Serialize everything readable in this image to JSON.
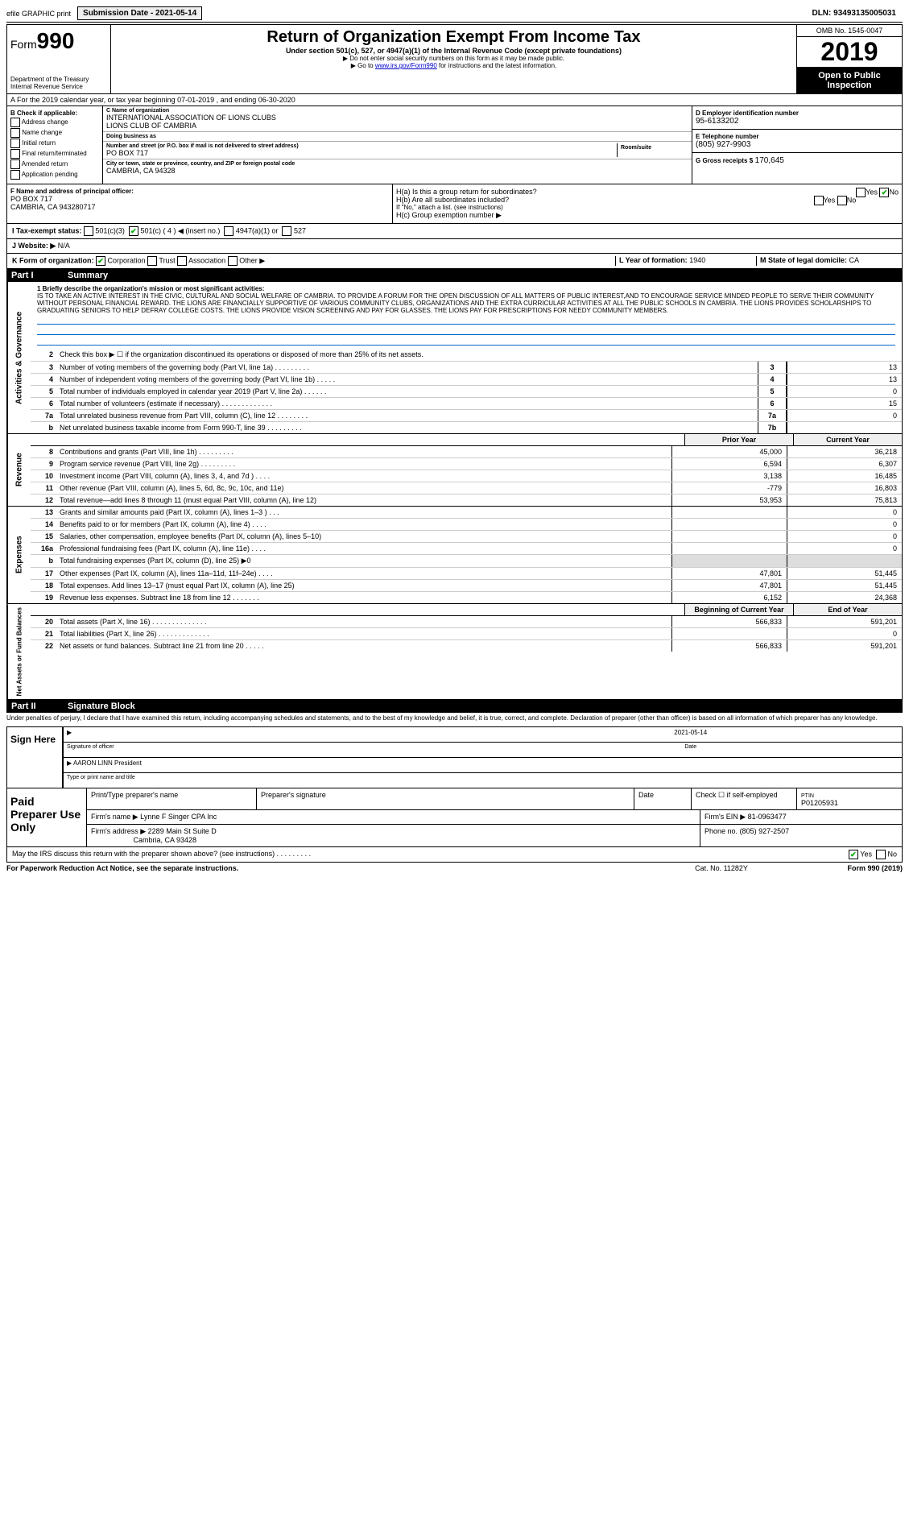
{
  "topbar": {
    "efile": "efile GRAPHIC print",
    "submission_label": "Submission Date - 2021-05-14",
    "dln": "DLN: 93493135005031"
  },
  "header": {
    "form_prefix": "Form",
    "form_num": "990",
    "dept": "Department of the Treasury\nInternal Revenue Service",
    "title": "Return of Organization Exempt From Income Tax",
    "sub": "Under section 501(c), 527, or 4947(a)(1) of the Internal Revenue Code (except private foundations)",
    "note1": "▶ Do not enter social security numbers on this form as it may be made public.",
    "note2": "▶ Go to www.irs.gov/Form990 for instructions and the latest information.",
    "omb": "OMB No. 1545-0047",
    "year": "2019",
    "open": "Open to Public Inspection"
  },
  "period": "A For the 2019 calendar year, or tax year beginning 07-01-2019  , and ending 06-30-2020",
  "box_b": {
    "label": "B Check if applicable:",
    "opts": [
      "Address change",
      "Name change",
      "Initial return",
      "Final return/terminated",
      "Amended return",
      "Application pending"
    ]
  },
  "box_c": {
    "name_lbl": "C Name of organization",
    "name1": "INTERNATIONAL ASSOCIATION OF LIONS CLUBS",
    "name2": "LIONS CLUB OF CAMBRIA",
    "dba_lbl": "Doing business as",
    "dba": "",
    "addr_lbl": "Number and street (or P.O. box if mail is not delivered to street address)",
    "addr": "PO BOX 717",
    "room_lbl": "Room/suite",
    "city_lbl": "City or town, state or province, country, and ZIP or foreign postal code",
    "city": "CAMBRIA, CA  94328"
  },
  "box_d": {
    "ein_lbl": "D Employer identification number",
    "ein": "95-6133202",
    "tel_lbl": "E Telephone number",
    "tel": "(805) 927-9903",
    "gross_lbl": "G Gross receipts $",
    "gross": "170,645"
  },
  "box_f": {
    "lbl": "F Name and address of principal officer:",
    "line1": "PO BOX 717",
    "line2": "CAMBRIA, CA  943280717"
  },
  "box_h": {
    "a": "H(a)  Is this a group return for subordinates?",
    "b": "H(b)  Are all subordinates included?",
    "bnote": "If \"No,\" attach a list. (see instructions)",
    "c": "H(c)  Group exemption number ▶"
  },
  "tax_status": {
    "lbl": "I  Tax-exempt status:",
    "opts": [
      "501(c)(3)",
      "501(c) ( 4 ) ◀ (insert no.)",
      "4947(a)(1) or",
      "527"
    ]
  },
  "website": {
    "lbl": "J  Website: ▶",
    "val": "N/A"
  },
  "k": {
    "lbl": "K Form of organization:",
    "opts": [
      "Corporation",
      "Trust",
      "Association",
      "Other ▶"
    ]
  },
  "l": {
    "lbl": "L Year of formation:",
    "val": "1940"
  },
  "m": {
    "lbl": "M State of legal domicile:",
    "val": "CA"
  },
  "part1": {
    "num": "Part I",
    "title": "Summary"
  },
  "mission": {
    "lbl": "1  Briefly describe the organization's mission or most significant activities:",
    "text": "IS TO TAKE AN ACTIVE INTEREST IN THE CIVIC, CULTURAL AND SOCIAL WELFARE OF CAMBRIA. TO PROVIDE A FORUM FOR THE OPEN DISCUSSION OF ALL MATTERS OF PUBLIC INTEREST,AND TO ENCOURAGE SERVICE MINDED PEOPLE TO SERVE THEIR COMMUNITY WITHOUT PERSONAL FINANCIAL REWARD. THE LIONS ARE FINANCIALLY SUPPORTIVE OF VARIOUS COMMUNITY CLUBS, ORGANIZATIONS AND THE EXTRA CURRICULAR ACTIVITIES AT ALL THE PUBLIC SCHOOLS IN CAMBRIA. THE LIONS PROVIDES SCHOLARSHIPS TO GRADUATING SENIORS TO HELP DEFRAY COLLEGE COSTS. THE LIONS PROVIDE VISION SCREENING AND PAY FOR GLASSES. THE LIONS PAY FOR PRESCRIPTIONS FOR NEEDY COMMUNITY MEMBERS."
  },
  "gov_lines": [
    {
      "n": "2",
      "d": "Check this box ▶ ☐ if the organization discontinued its operations or disposed of more than 25% of its net assets."
    },
    {
      "n": "3",
      "d": "Number of voting members of the governing body (Part VI, line 1a)  .   .   .   .   .   .   .   .   .",
      "box": "3",
      "v": "13"
    },
    {
      "n": "4",
      "d": "Number of independent voting members of the governing body (Part VI, line 1b)  .   .   .   .   .",
      "box": "4",
      "v": "13"
    },
    {
      "n": "5",
      "d": "Total number of individuals employed in calendar year 2019 (Part V, line 2a)  .   .   .   .   .   .",
      "box": "5",
      "v": "0"
    },
    {
      "n": "6",
      "d": "Total number of volunteers (estimate if necessary)  .   .   .   .   .   .   .   .   .   .   .   .   .",
      "box": "6",
      "v": "15"
    },
    {
      "n": "7a",
      "d": "Total unrelated business revenue from Part VIII, column (C), line 12  .   .   .   .   .   .   .   .",
      "box": "7a",
      "v": "0"
    },
    {
      "n": "b",
      "d": "Net unrelated business taxable income from Form 990-T, line 39  .   .   .   .   .   .   .   .   .",
      "box": "7b",
      "v": ""
    }
  ],
  "rev_header": {
    "prior": "Prior Year",
    "current": "Current Year"
  },
  "rev_lines": [
    {
      "n": "8",
      "d": "Contributions and grants (Part VIII, line 1h)  .   .   .   .   .   .   .   .   .",
      "p": "45,000",
      "c": "36,218"
    },
    {
      "n": "9",
      "d": "Program service revenue (Part VIII, line 2g)  .   .   .   .   .   .   .   .   .",
      "p": "6,594",
      "c": "6,307"
    },
    {
      "n": "10",
      "d": "Investment income (Part VIII, column (A), lines 3, 4, and 7d )  .   .   .   .",
      "p": "3,138",
      "c": "16,485"
    },
    {
      "n": "11",
      "d": "Other revenue (Part VIII, column (A), lines 5, 6d, 8c, 9c, 10c, and 11e)",
      "p": "-779",
      "c": "16,803"
    },
    {
      "n": "12",
      "d": "Total revenue—add lines 8 through 11 (must equal Part VIII, column (A), line 12)",
      "p": "53,953",
      "c": "75,813"
    }
  ],
  "exp_lines": [
    {
      "n": "13",
      "d": "Grants and similar amounts paid (Part IX, column (A), lines 1–3 )  .   .   .",
      "p": "",
      "c": "0"
    },
    {
      "n": "14",
      "d": "Benefits paid to or for members (Part IX, column (A), line 4)  .   .   .   .",
      "p": "",
      "c": "0"
    },
    {
      "n": "15",
      "d": "Salaries, other compensation, employee benefits (Part IX, column (A), lines 5–10)",
      "p": "",
      "c": "0"
    },
    {
      "n": "16a",
      "d": "Professional fundraising fees (Part IX, column (A), line 11e)  .   .   .   .",
      "p": "",
      "c": "0"
    },
    {
      "n": "b",
      "d": "Total fundraising expenses (Part IX, column (D), line 25) ▶0",
      "shaded": true
    },
    {
      "n": "17",
      "d": "Other expenses (Part IX, column (A), lines 11a–11d, 11f–24e)  .   .   .   .",
      "p": "47,801",
      "c": "51,445"
    },
    {
      "n": "18",
      "d": "Total expenses. Add lines 13–17 (must equal Part IX, column (A), line 25)",
      "p": "47,801",
      "c": "51,445"
    },
    {
      "n": "19",
      "d": "Revenue less expenses. Subtract line 18 from line 12  .   .   .   .   .   .   .",
      "p": "6,152",
      "c": "24,368"
    }
  ],
  "na_header": {
    "prior": "Beginning of Current Year",
    "current": "End of Year"
  },
  "na_lines": [
    {
      "n": "20",
      "d": "Total assets (Part X, line 16)  .   .   .   .   .   .   .   .   .   .   .   .   .   .",
      "p": "566,833",
      "c": "591,201"
    },
    {
      "n": "21",
      "d": "Total liabilities (Part X, line 26)  .   .   .   .   .   .   .   .   .   .   .   .   .",
      "p": "",
      "c": "0"
    },
    {
      "n": "22",
      "d": "Net assets or fund balances. Subtract line 21 from line 20  .   .   .   .   .",
      "p": "566,833",
      "c": "591,201"
    }
  ],
  "part2": {
    "num": "Part II",
    "title": "Signature Block"
  },
  "perjury": "Under penalties of perjury, I declare that I have examined this return, including accompanying schedules and statements, and to the best of my knowledge and belief, it is true, correct, and complete. Declaration of preparer (other than officer) is based on all information of which preparer has any knowledge.",
  "sign": {
    "lbl": "Sign Here",
    "sig_lbl": "Signature of officer",
    "date_lbl": "Date",
    "date": "2021-05-14",
    "name": "AARON LINN  President",
    "name_lbl": "Type or print name and title"
  },
  "preparer": {
    "lbl": "Paid Preparer Use Only",
    "h1": "Print/Type preparer's name",
    "h2": "Preparer's signature",
    "h3": "Date",
    "h4": "Check ☐ if self-employed",
    "h5_lbl": "PTIN",
    "h5": "P01205931",
    "firm_lbl": "Firm's name   ▶",
    "firm": "Lynne F Singer CPA Inc",
    "ein_lbl": "Firm's EIN ▶",
    "ein": "81-0963477",
    "addr_lbl": "Firm's address ▶",
    "addr1": "2289 Main St Suite D",
    "addr2": "Cambria, CA  93428",
    "phone_lbl": "Phone no.",
    "phone": "(805) 927-2507"
  },
  "discuss": "May the IRS discuss this return with the preparer shown above? (see instructions)  .   .   .   .   .   .   .   .   .",
  "footer": {
    "l": "For Paperwork Reduction Act Notice, see the separate instructions.",
    "c": "Cat. No. 11282Y",
    "r": "Form 990 (2019)"
  },
  "side_labels": {
    "gov": "Activities & Governance",
    "rev": "Revenue",
    "exp": "Expenses",
    "na": "Net Assets or Fund Balances"
  },
  "colors": {
    "black": "#000000",
    "white": "#ffffff",
    "shaded": "#dddddd",
    "link": "#0000cc",
    "uline": "#0066cc"
  }
}
